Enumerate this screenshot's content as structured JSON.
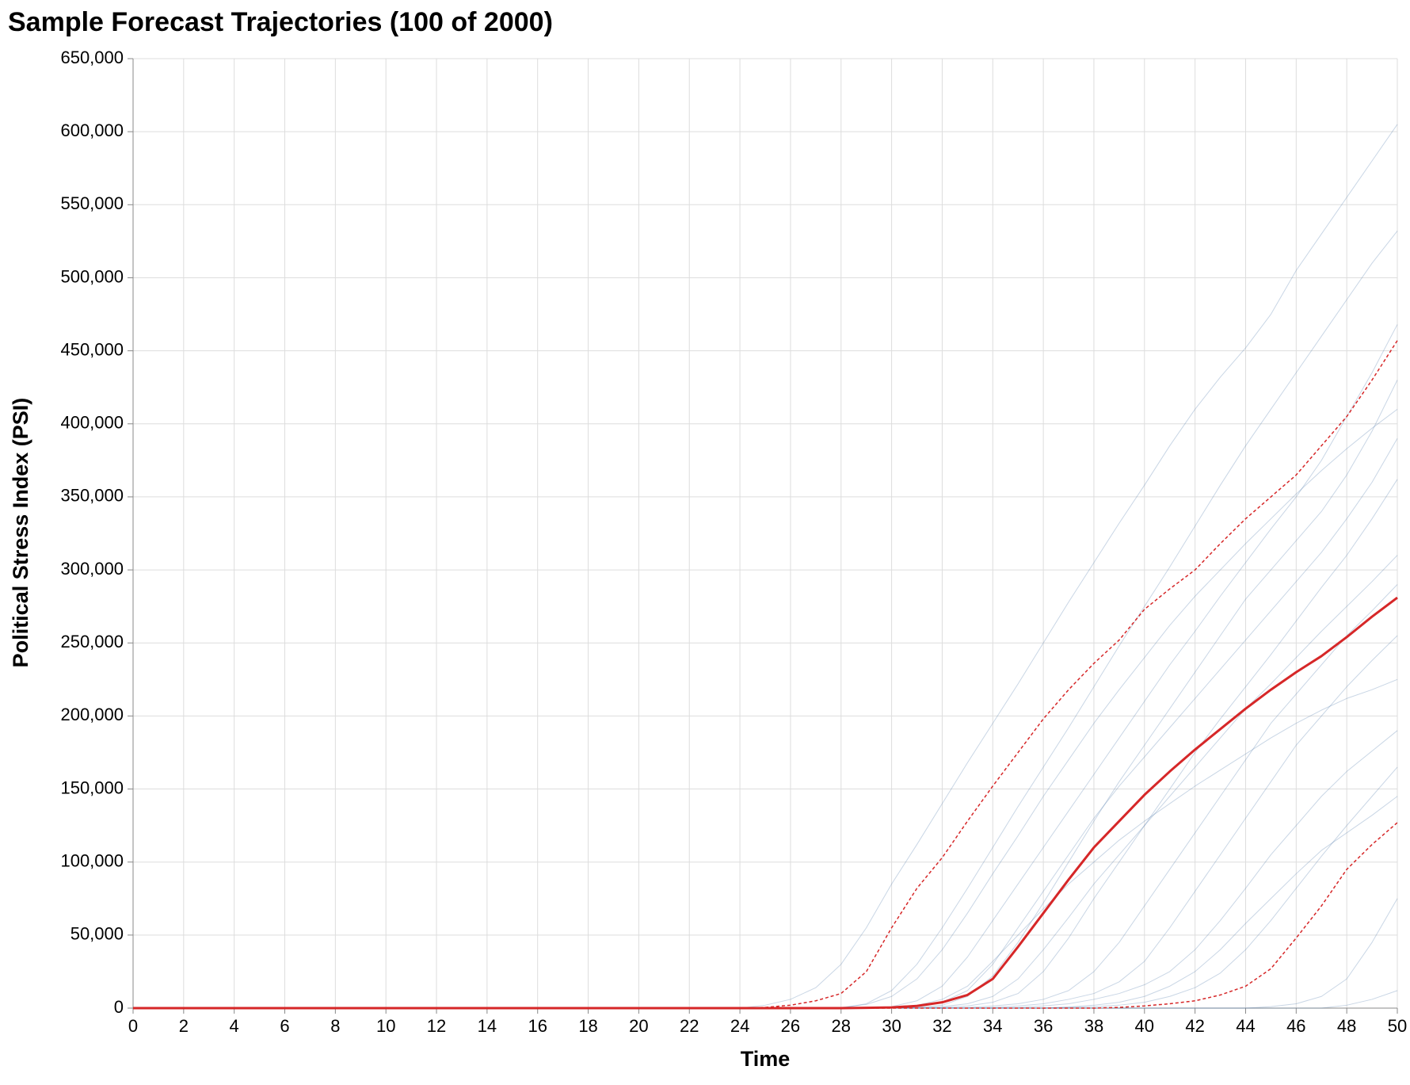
{
  "chart_data": {
    "type": "line",
    "title": "Sample Forecast Trajectories (100 of 2000)",
    "x_label": "Time",
    "y_label": "Political Stress Index (PSI)",
    "x": [
      0,
      24,
      25,
      26,
      27,
      28,
      29,
      30,
      31,
      32,
      33,
      34,
      35,
      36,
      37,
      38,
      39,
      40,
      41,
      42,
      43,
      44,
      45,
      46,
      47,
      48,
      49,
      50
    ],
    "xlim": [
      0,
      50
    ],
    "xticks": [
      0,
      2,
      4,
      6,
      8,
      10,
      12,
      14,
      16,
      18,
      20,
      22,
      24,
      26,
      28,
      30,
      32,
      34,
      36,
      38,
      40,
      42,
      44,
      46,
      48,
      50
    ],
    "ylim": [
      0,
      650000
    ],
    "yticks": [
      0,
      {
        "value": 50000,
        "label": "50,000"
      },
      {
        "value": 100000,
        "label": "100,000"
      },
      {
        "value": 150000,
        "label": "150,000"
      },
      {
        "value": 200000,
        "label": "200,000"
      },
      {
        "value": 250000,
        "label": "250,000"
      },
      {
        "value": 300000,
        "label": "300,000"
      },
      {
        "value": 350000,
        "label": "350,000"
      },
      {
        "value": 400000,
        "label": "400,000"
      },
      {
        "value": 450000,
        "label": "450,000"
      },
      {
        "value": 500000,
        "label": "500,000"
      },
      {
        "value": 550000,
        "label": "550,000"
      },
      {
        "value": 600000,
        "label": "600,000"
      },
      {
        "value": 650000,
        "label": "650,000"
      }
    ],
    "grid": true,
    "series": [
      {
        "color": "#4c78a8",
        "opacity": 0.3,
        "width": 1,
        "values": [
          0,
          0,
          2000,
          6000,
          14000,
          30000,
          55000,
          85000,
          112000,
          140000,
          168000,
          195000,
          222000,
          250000,
          278000,
          305000,
          332000,
          358000,
          385000,
          410000,
          432000,
          452000,
          475000,
          505000,
          530000,
          555000,
          580000,
          605000
        ]
      },
      {
        "color": "#4c78a8",
        "opacity": 0.3,
        "width": 1,
        "values": [
          0,
          0,
          0,
          0,
          0,
          0,
          3000,
          12000,
          30000,
          55000,
          82000,
          110000,
          138000,
          165000,
          192000,
          220000,
          248000,
          275000,
          302000,
          330000,
          358000,
          385000,
          410000,
          435000,
          460000,
          485000,
          510000,
          532000
        ]
      },
      {
        "color": "#4c78a8",
        "opacity": 0.3,
        "width": 1,
        "values": [
          0,
          0,
          0,
          0,
          0,
          0,
          0,
          1000,
          5000,
          15000,
          35000,
          60000,
          85000,
          110000,
          135000,
          160000,
          185000,
          210000,
          235000,
          258000,
          282000,
          305000,
          328000,
          350000,
          375000,
          405000,
          435000,
          468000
        ]
      },
      {
        "color": "#4c78a8",
        "opacity": 0.3,
        "width": 1,
        "values": [
          0,
          0,
          0,
          0,
          0,
          0,
          0,
          0,
          500,
          2000,
          8000,
          22000,
          45000,
          72000,
          100000,
          128000,
          155000,
          180000,
          205000,
          230000,
          255000,
          280000,
          300000,
          320000,
          340000,
          365000,
          395000,
          430000
        ]
      },
      {
        "color": "#4c78a8",
        "opacity": 0.3,
        "width": 1,
        "values": [
          0,
          0,
          0,
          0,
          0,
          0,
          0,
          200,
          1000,
          4000,
          12000,
          30000,
          55000,
          80000,
          105000,
          130000,
          152000,
          172000,
          192000,
          212000,
          232000,
          252000,
          272000,
          292000,
          312000,
          335000,
          360000,
          390000
        ]
      },
      {
        "color": "#4c78a8",
        "opacity": 0.3,
        "width": 1,
        "values": [
          0,
          0,
          0,
          0,
          0,
          0,
          0,
          0,
          0,
          500,
          1500,
          4000,
          10000,
          25000,
          48000,
          75000,
          100000,
          125000,
          150000,
          175000,
          198000,
          220000,
          242000,
          265000,
          288000,
          310000,
          335000,
          362000
        ]
      },
      {
        "color": "#4c78a8",
        "opacity": 0.3,
        "width": 1,
        "values": [
          0,
          0,
          0,
          0,
          0,
          0,
          0,
          0,
          200,
          1000,
          3000,
          8000,
          20000,
          40000,
          62000,
          85000,
          105000,
          125000,
          145000,
          165000,
          185000,
          205000,
          222000,
          240000,
          258000,
          275000,
          292000,
          310000
        ]
      },
      {
        "color": "#4c78a8",
        "opacity": 0.3,
        "width": 1,
        "values": [
          0,
          0,
          0,
          0,
          0,
          0,
          0,
          0,
          0,
          0,
          500,
          1500,
          3000,
          6000,
          12000,
          25000,
          45000,
          70000,
          95000,
          120000,
          145000,
          170000,
          195000,
          215000,
          235000,
          255000,
          272000,
          290000
        ]
      },
      {
        "color": "#4c78a8",
        "opacity": 0.3,
        "width": 1,
        "values": [
          0,
          0,
          0,
          0,
          0,
          0,
          0,
          0,
          0,
          0,
          0,
          500,
          1500,
          3000,
          6000,
          10000,
          18000,
          32000,
          55000,
          80000,
          105000,
          130000,
          155000,
          180000,
          200000,
          220000,
          238000,
          255000
        ]
      },
      {
        "color": "#4c78a8",
        "opacity": 0.3,
        "width": 1,
        "values": [
          0,
          0,
          0,
          0,
          0,
          0,
          0,
          500,
          2000,
          6000,
          15000,
          32000,
          50000,
          68000,
          85000,
          100000,
          115000,
          128000,
          140000,
          152000,
          163000,
          174000,
          185000,
          195000,
          204000,
          212000,
          218000,
          225000
        ]
      },
      {
        "color": "#4c78a8",
        "opacity": 0.3,
        "width": 1,
        "values": [
          0,
          0,
          0,
          0,
          0,
          0,
          0,
          0,
          0,
          0,
          0,
          0,
          500,
          1500,
          3000,
          6000,
          10000,
          16000,
          25000,
          40000,
          60000,
          82000,
          105000,
          125000,
          145000,
          162000,
          176000,
          190000
        ]
      },
      {
        "color": "#4c78a8",
        "opacity": 0.3,
        "width": 1,
        "values": [
          0,
          0,
          0,
          0,
          0,
          0,
          0,
          0,
          0,
          0,
          0,
          0,
          0,
          0,
          500,
          1000,
          2000,
          4000,
          8000,
          14000,
          24000,
          40000,
          60000,
          82000,
          104000,
          125000,
          145000,
          165000
        ]
      },
      {
        "color": "#4c78a8",
        "opacity": 0.3,
        "width": 1,
        "values": [
          0,
          0,
          0,
          0,
          0,
          0,
          0,
          0,
          0,
          0,
          0,
          0,
          0,
          200,
          800,
          2000,
          4000,
          8000,
          15000,
          25000,
          40000,
          58000,
          75000,
          92000,
          108000,
          120000,
          132000,
          145000
        ]
      },
      {
        "color": "#4c78a8",
        "opacity": 0.3,
        "width": 1,
        "values": [
          0,
          0,
          0,
          0,
          0,
          500,
          2500,
          8000,
          20000,
          40000,
          65000,
          92000,
          118000,
          145000,
          170000,
          195000,
          218000,
          240000,
          262000,
          282000,
          300000,
          318000,
          335000,
          352000,
          368000,
          383000,
          397000,
          410000
        ]
      },
      {
        "color": "#4c78a8",
        "opacity": 0.3,
        "width": 1,
        "values": [
          0,
          0,
          0,
          0,
          0,
          0,
          0,
          0,
          0,
          0,
          0,
          0,
          0,
          0,
          0,
          0,
          0,
          0,
          0,
          0,
          0,
          0,
          1000,
          3000,
          8000,
          20000,
          45000,
          75000
        ]
      },
      {
        "color": "#4c78a8",
        "opacity": 0.3,
        "width": 1,
        "values": [
          0,
          0,
          0,
          0,
          0,
          0,
          0,
          0,
          0,
          0,
          0,
          0,
          0,
          0,
          0,
          0,
          0,
          0,
          0,
          0,
          0,
          0,
          0,
          0,
          0,
          2000,
          6000,
          12000
        ]
      },
      {
        "color": "#d62728",
        "opacity": 1,
        "width": 1.5,
        "dash": true,
        "values": [
          0,
          0,
          500,
          2000,
          5000,
          10000,
          25000,
          55000,
          82000,
          103000,
          128000,
          152000,
          175000,
          198000,
          218000,
          236000,
          252000,
          273000,
          287000,
          300000,
          318000,
          335000,
          350000,
          365000,
          385000,
          405000,
          430000,
          457000
        ]
      },
      {
        "color": "#d62728",
        "opacity": 1,
        "width": 1.5,
        "dash": true,
        "values": [
          0,
          0,
          0,
          0,
          0,
          0,
          0,
          0,
          0,
          0,
          0,
          0,
          0,
          0,
          0,
          0,
          500,
          1500,
          3000,
          5000,
          9000,
          15000,
          27000,
          48000,
          70000,
          95000,
          112000,
          127000
        ]
      },
      {
        "color": "#d62728",
        "opacity": 1,
        "width": 3,
        "values": [
          0,
          0,
          0,
          0,
          0,
          0,
          200,
          500,
          1500,
          4000,
          9000,
          20000,
          42000,
          65000,
          88000,
          110000,
          128000,
          146000,
          162000,
          177000,
          191000,
          205000,
          218000,
          230000,
          241000,
          254000,
          268000,
          281000
        ]
      }
    ]
  }
}
